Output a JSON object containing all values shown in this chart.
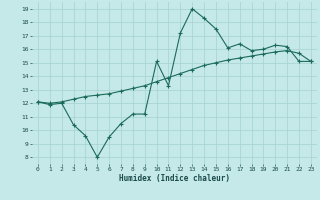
{
  "xlabel": "Humidex (Indice chaleur)",
  "bg_color": "#c5e8e8",
  "grid_color": "#aad4d4",
  "line_color": "#1a6b5a",
  "xlim": [
    -0.5,
    23.5
  ],
  "ylim": [
    7.5,
    19.5
  ],
  "xticks": [
    0,
    1,
    2,
    3,
    4,
    5,
    6,
    7,
    8,
    9,
    10,
    11,
    12,
    13,
    14,
    15,
    16,
    17,
    18,
    19,
    20,
    21,
    22,
    23
  ],
  "yticks": [
    8,
    9,
    10,
    11,
    12,
    13,
    14,
    15,
    16,
    17,
    18,
    19
  ],
  "line1_x": [
    0,
    1,
    2,
    3,
    4,
    5,
    6,
    7,
    8,
    9,
    10,
    11,
    12,
    13,
    14,
    15,
    16,
    17,
    18,
    19,
    20,
    21,
    22,
    23
  ],
  "line1_y": [
    12.1,
    11.9,
    12.0,
    10.4,
    9.6,
    8.0,
    9.5,
    10.5,
    11.2,
    11.2,
    15.1,
    13.3,
    17.2,
    19.0,
    18.3,
    17.5,
    16.1,
    16.4,
    15.9,
    16.0,
    16.3,
    16.2,
    15.1,
    15.1
  ],
  "line2_x": [
    0,
    1,
    2,
    3,
    4,
    5,
    6,
    7,
    8,
    9,
    10,
    11,
    12,
    13,
    14,
    15,
    16,
    17,
    18,
    19,
    20,
    21,
    22,
    23
  ],
  "line2_y": [
    12.1,
    12.0,
    12.1,
    12.3,
    12.5,
    12.6,
    12.7,
    12.9,
    13.1,
    13.3,
    13.6,
    13.9,
    14.2,
    14.5,
    14.8,
    15.0,
    15.2,
    15.35,
    15.5,
    15.65,
    15.8,
    15.9,
    15.7,
    15.1
  ]
}
